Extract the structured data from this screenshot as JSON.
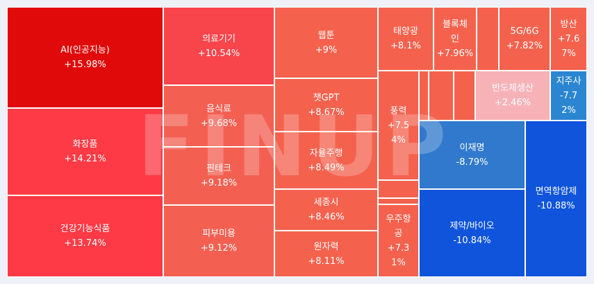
{
  "watermark": "FINUP",
  "tiles": {
    "ai": {
      "name": "AI(인공지능)",
      "change": "+15.98%"
    },
    "cosmetics": {
      "name": "화장품",
      "change": "+14.21%"
    },
    "health_food": {
      "name": "건강기능식품",
      "change": "+13.74%"
    },
    "medical_devices": {
      "name": "의료기기",
      "change": "+10.54%"
    },
    "food": {
      "name": "음식료",
      "change": "+9.68%"
    },
    "fintech": {
      "name": "핀테크",
      "change": "+9.18%"
    },
    "skin_beauty": {
      "name": "피부미용",
      "change": "+9.12%"
    },
    "webtoon": {
      "name": "웹툰",
      "change": "+9%"
    },
    "chatgpt": {
      "name": "챗GPT",
      "change": "+8.67%"
    },
    "autonomous": {
      "name": "자율주행",
      "change": "+8.49%"
    },
    "sejong": {
      "name": "세종시",
      "change": "+8.46%"
    },
    "nuclear": {
      "name": "원자력",
      "change": "+8.11%"
    },
    "solar": {
      "name": "태양광",
      "change": "+8.1%"
    },
    "blockchain": {
      "name": "블록체\n인",
      "change": "+7.96%"
    },
    "fiveg": {
      "name": "5G/6G",
      "change": "+7.82%"
    },
    "defense": {
      "name": "방산",
      "change": "+7.6\n7%"
    },
    "wind": {
      "name": "풍력",
      "change": "+7.5\n4%"
    },
    "aerospace": {
      "name": "우주항\n공",
      "change": "+7.3\n1%"
    },
    "semiconductor": {
      "name": "반도체생산",
      "change": "+2.46%"
    },
    "holding": {
      "name": "지주사",
      "change": "-7.7\n2%"
    },
    "lee_jaemyung": {
      "name": "이재명",
      "change": "-8.79%"
    },
    "dutyfree": {
      "name": "면역항암제",
      "change": "-10.88%"
    },
    "pharma_bio": {
      "name": "제약/바이오",
      "change": "-10.84%"
    }
  },
  "colors": {
    "strong_up": "#e10a0a",
    "up": "#fd3a45",
    "mild_up": "#f4624e",
    "slight_up": "#f7b2b8",
    "down": "#2b86d1",
    "strong_down": "#0f54db"
  }
}
